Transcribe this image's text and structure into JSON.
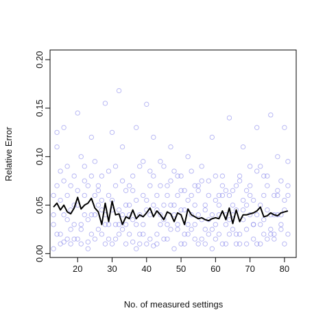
{
  "chart_data": {
    "type": "scatter",
    "xlabel": "No. of measured settings",
    "ylabel": "Relative Error",
    "xlim": [
      12,
      83.4
    ],
    "ylim": [
      -0.004,
      0.21
    ],
    "xticks": [
      20,
      30,
      40,
      50,
      60,
      70,
      80
    ],
    "yticks": [
      {
        "value": 0,
        "label": "0.00"
      },
      {
        "value": 0.05,
        "label": "0.05"
      },
      {
        "value": 0.1,
        "label": "0.10"
      },
      {
        "value": 0.15,
        "label": "0.15"
      },
      {
        "value": 0.2,
        "label": "0.20"
      }
    ],
    "grid": false,
    "x": [
      13,
      14,
      15,
      16,
      17,
      18,
      19,
      20,
      21,
      22,
      23,
      24,
      25,
      26,
      27,
      28,
      29,
      30,
      31,
      32,
      33,
      34,
      35,
      36,
      37,
      38,
      39,
      40,
      41,
      42,
      43,
      44,
      45,
      46,
      47,
      48,
      49,
      50,
      51,
      52,
      53,
      54,
      55,
      56,
      57,
      58,
      59,
      60,
      61,
      62,
      63,
      64,
      65,
      66,
      67,
      68,
      69,
      70,
      71,
      72,
      73,
      74,
      75,
      76,
      77,
      78,
      79,
      80,
      81
    ],
    "series": [
      {
        "mode": "points",
        "color": "#7b7bea",
        "values": [
          0.005,
          0.11,
          0.02,
          0.13,
          0.06,
          0.01,
          0.08,
          0.145,
          0.03,
          0.09,
          0.005,
          0.12,
          0.04,
          0.07,
          0.02,
          0.155,
          0.06,
          0.01,
          0.09,
          0.03,
          0.11,
          0.05,
          0.02,
          0.08,
          0.13,
          0.01,
          0.06,
          0.154,
          0.04,
          0.12,
          0.02,
          0.07,
          0.09,
          0.03,
          0.11,
          0.005,
          0.06,
          0.08,
          0.02,
          0.1,
          0.04,
          0.07,
          0.01,
          0.09,
          0.05,
          0.02,
          0.12,
          0.03,
          0.06,
          0.08,
          0.01,
          0.14,
          0.04,
          0.07,
          0.02,
          0.11,
          0.05,
          0.09,
          0.03,
          0.13,
          0.01,
          0.06,
          0.08,
          0.143,
          0.02,
          0.1,
          0.04,
          0.13,
          0.07
        ]
      },
      {
        "mode": "points",
        "color": "#7b7bea",
        "values": [
          0.03,
          0.07,
          0.01,
          0.04,
          0.09,
          0.025,
          0.05,
          0.015,
          0.1,
          0.06,
          0.035,
          0.08,
          0.015,
          0.065,
          0.045,
          0.01,
          0.085,
          0.125,
          0.03,
          0.168,
          0.04,
          0.01,
          0.07,
          0.035,
          0.055,
          0.02,
          0.095,
          0.045,
          0.015,
          0.08,
          0.06,
          0.03,
          0.05,
          0.015,
          0.075,
          0.04,
          0.025,
          0.065,
          0.01,
          0.055,
          0.085,
          0.03,
          0.07,
          0.015,
          0.045,
          0.06,
          0.025,
          0.08,
          0.04,
          0.01,
          0.065,
          0.035,
          0.05,
          0.02,
          0.075,
          0.045,
          0.01,
          0.06,
          0.03,
          0.085,
          0.05,
          0.02,
          0.07,
          0.04,
          0.015,
          0.065,
          0.03,
          0.055,
          0.02
        ]
      },
      {
        "mode": "points",
        "color": "#7b7bea",
        "values": [
          0.06,
          0.02,
          0.085,
          0.012,
          0.035,
          0.07,
          0.015,
          0.05,
          0.025,
          0.075,
          0.012,
          0.04,
          0.095,
          0.025,
          0.055,
          0.03,
          0.015,
          0.045,
          0.07,
          0.02,
          0.025,
          0.065,
          0.04,
          0.012,
          0.03,
          0.09,
          0.02,
          0.055,
          0.07,
          0.008,
          0.045,
          0.095,
          0.015,
          0.06,
          0.025,
          0.05,
          0.08,
          0.01,
          0.045,
          0.02,
          0.025,
          0.05,
          0.065,
          0.035,
          0.01,
          0.075,
          0.04,
          0.015,
          0.05,
          0.06,
          0.03,
          0.02,
          0.065,
          0.045,
          0.01,
          0.055,
          0.025,
          0.07,
          0.015,
          0.04,
          0.03,
          0.08,
          0.015,
          0.025,
          0.06,
          0.04,
          0.075,
          0.01,
          0.095
        ]
      },
      {
        "mode": "points",
        "color": "#7b7bea",
        "values": [
          0.04,
          0.125,
          0.055,
          0.075,
          0.015,
          0.045,
          0.03,
          0.065,
          0.01,
          0.04,
          0.07,
          0.02,
          0.06,
          0.05,
          0.08,
          0.04,
          0.03,
          0.055,
          0.015,
          0.045,
          0.075,
          0.03,
          0.05,
          0.065,
          0.005,
          0.04,
          0.03,
          0.01,
          0.085,
          0.05,
          0.01,
          0.04,
          0.035,
          0.07,
          0.05,
          0.085,
          0.03,
          0.045,
          0.065,
          0.03,
          0.06,
          0.015,
          0.04,
          0.075,
          0.025,
          0.035,
          0.005,
          0.055,
          0.02,
          0.07,
          0.04,
          0.06,
          0.025,
          0.01,
          0.08,
          0.035,
          0.065,
          0.04,
          0.055,
          0.01,
          0.09,
          0.035,
          0.045,
          0.02,
          0.04,
          0.06,
          0.025,
          0.045,
          0.06
        ]
      },
      {
        "mode": "line",
        "color": "#000000",
        "values": [
          0.048,
          0.052,
          0.045,
          0.05,
          0.043,
          0.041,
          0.047,
          0.058,
          0.046,
          0.05,
          0.052,
          0.057,
          0.047,
          0.043,
          0.03,
          0.052,
          0.033,
          0.054,
          0.04,
          0.041,
          0.03,
          0.038,
          0.036,
          0.045,
          0.036,
          0.04,
          0.038,
          0.042,
          0.047,
          0.038,
          0.044,
          0.04,
          0.035,
          0.043,
          0.041,
          0.033,
          0.042,
          0.04,
          0.03,
          0.046,
          0.04,
          0.038,
          0.036,
          0.037,
          0.035,
          0.034,
          0.036,
          0.037,
          0.036,
          0.044,
          0.035,
          0.047,
          0.031,
          0.045,
          0.033,
          0.04,
          0.04,
          0.041,
          0.042,
          0.044,
          0.048,
          0.038,
          0.039,
          0.042,
          0.04,
          0.039,
          0.042,
          0.043,
          0.044
        ]
      }
    ]
  }
}
